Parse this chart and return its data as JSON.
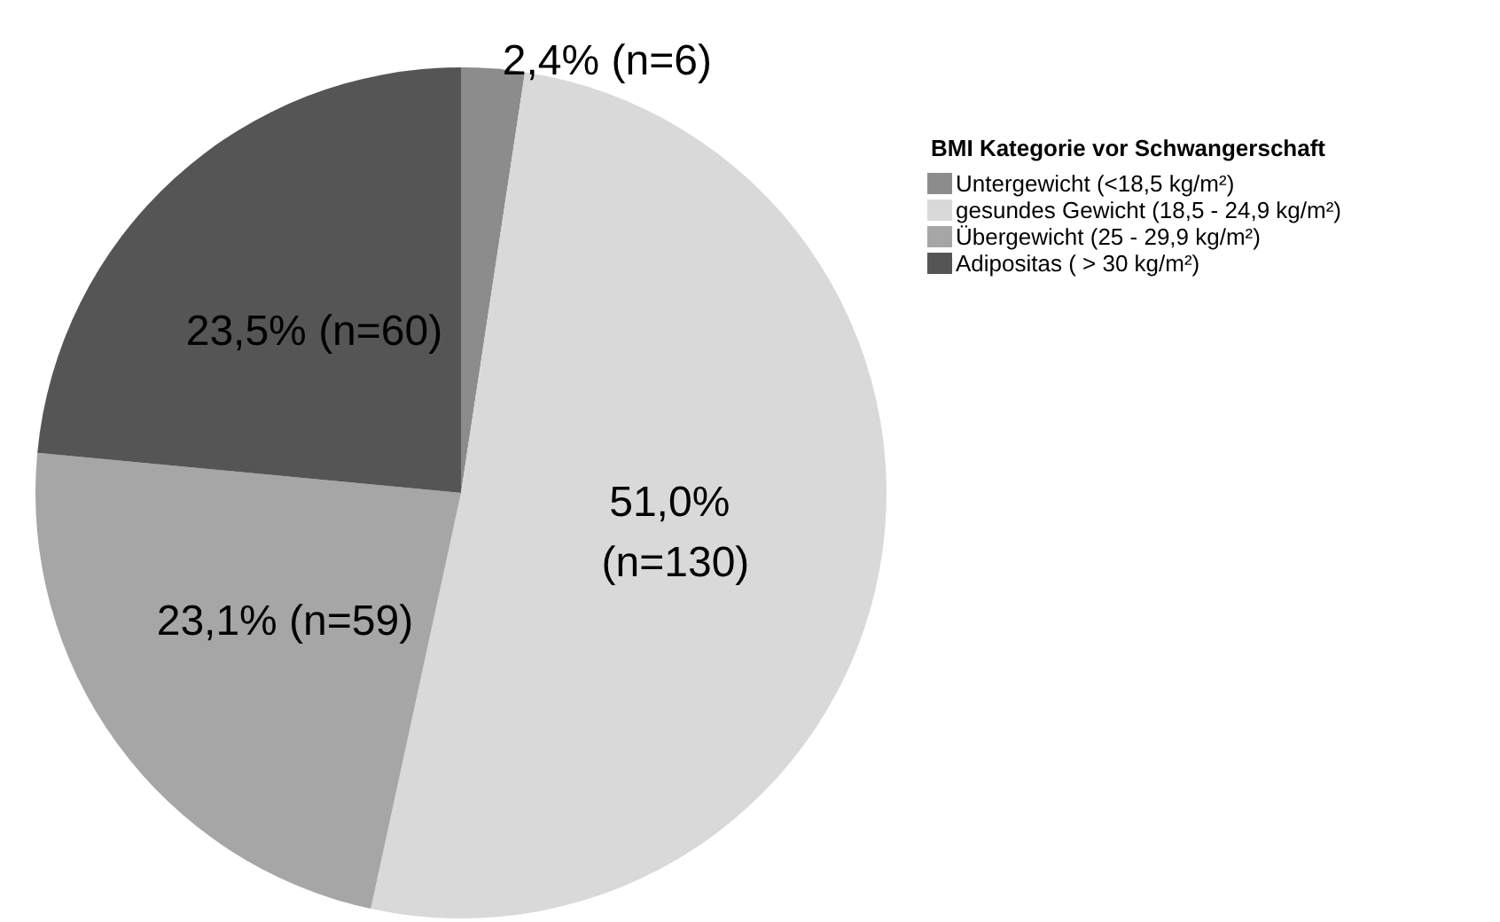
{
  "chart_data": {
    "type": "pie",
    "legend_title": "BMI Kategorie vor Schwangerschaft",
    "categories": [
      "Untergewicht (<18,5 kg/m²)",
      "gesundes Gewicht (18,5 - 24,9 kg/m²)",
      "Übergewicht (25 - 29,9 kg/m²)",
      "Adipositas ( > 30 kg/m²)"
    ],
    "values": [
      2.4,
      51.0,
      23.1,
      23.5
    ],
    "value_labels": [
      "2,4% (n=6)",
      "51,0% (n=130)",
      "23,1% (n=59)",
      "23,5% (n=60)"
    ],
    "colors": [
      "#8c8c8c",
      "#d9d9d9",
      "#a6a6a6",
      "#555555"
    ],
    "legend": "top right"
  }
}
